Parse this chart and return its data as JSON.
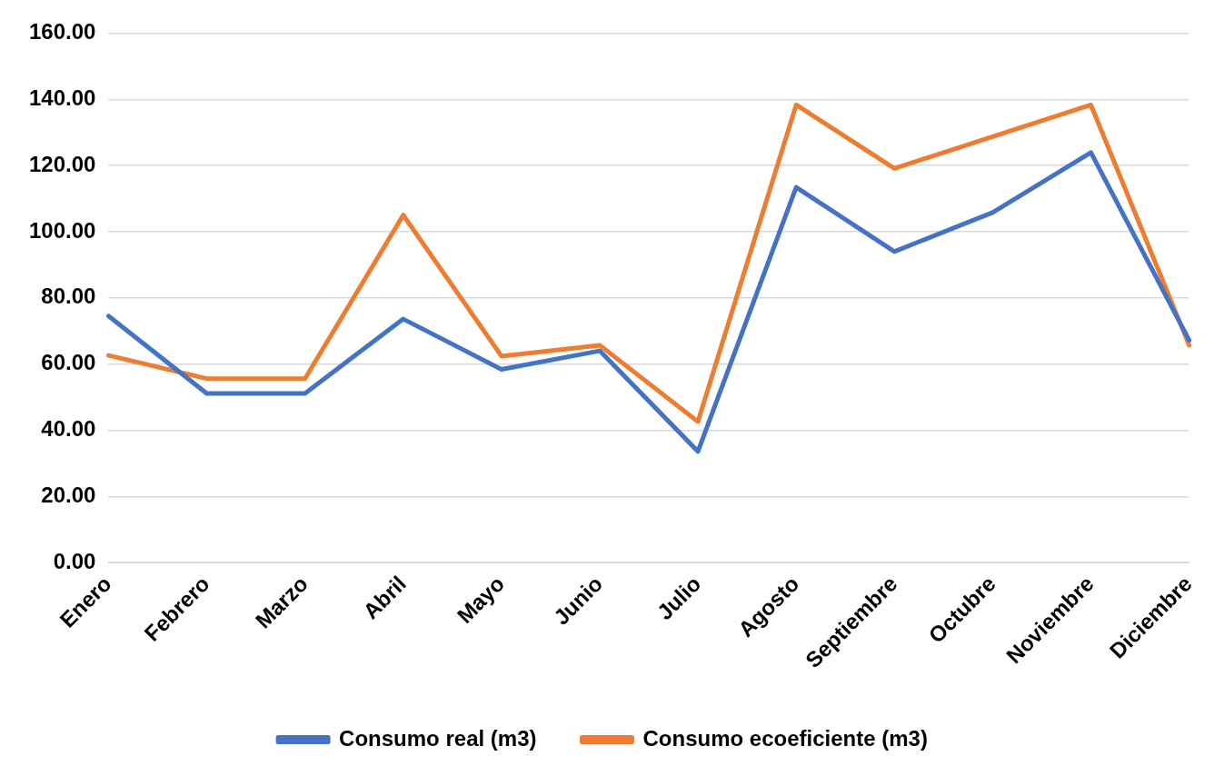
{
  "chart_data": {
    "type": "line",
    "categories": [
      "Enero",
      "Febrero",
      "Marzo",
      "Abril",
      "Mayo",
      "Junio",
      "Julio",
      "Agosto",
      "Septiembre",
      "Octubre",
      "Noviembre",
      "Diciembre"
    ],
    "series": [
      {
        "name": "Consumo real (m3)",
        "color": "#4472c4",
        "values": [
          74.5,
          51.1,
          51.1,
          73.6,
          58.4,
          64.0,
          33.6,
          113.4,
          94.0,
          105.8,
          123.9,
          67.2
        ]
      },
      {
        "name": "Consumo ecoeficiente (m3)",
        "color": "#ed7d31",
        "values": [
          62.6,
          55.6,
          55.6,
          105.0,
          62.4,
          65.7,
          42.6,
          138.3,
          119.1,
          128.7,
          138.3,
          65.7
        ]
      }
    ],
    "ylim": [
      0,
      160
    ],
    "yticks": [
      {
        "value": 0,
        "label": "0.00"
      },
      {
        "value": 20,
        "label": "20.00"
      },
      {
        "value": 40,
        "label": "40.00"
      },
      {
        "value": 60,
        "label": "60.00"
      },
      {
        "value": 80,
        "label": "80.00"
      },
      {
        "value": 100,
        "label": "100.00"
      },
      {
        "value": 120,
        "label": "120.00"
      },
      {
        "value": 140,
        "label": "140.00"
      },
      {
        "value": 160,
        "label": "160.00"
      }
    ],
    "grid": "y",
    "legend": "bottom",
    "marker": "none",
    "line_style": "solid"
  }
}
